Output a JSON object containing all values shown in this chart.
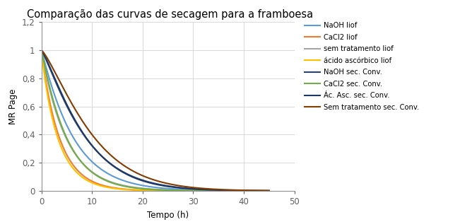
{
  "title": "Comparação das curvas de secagem para a framboesa",
  "xlabel": "Tempo (h)",
  "ylabel": "MR Page",
  "xlim": [
    0,
    50
  ],
  "ylim": [
    0,
    1.2
  ],
  "yticks": [
    0,
    0.2,
    0.4,
    0.6,
    0.8,
    1.0,
    1.2
  ],
  "ytick_labels": [
    "0",
    "0,2",
    "0,4",
    "0,6",
    "0,8",
    "1",
    "1,2"
  ],
  "xticks": [
    0,
    10,
    20,
    30,
    40,
    50
  ],
  "series": [
    {
      "label": "NaOH liof",
      "color": "#5B9BD5",
      "k": 0.14,
      "n": 1.05
    },
    {
      "label": "CaCl2 liof",
      "color": "#ED7D31",
      "k": 0.28,
      "n": 0.98
    },
    {
      "label": "sem tratamento liof",
      "color": "#A5A5A5",
      "k": 0.2,
      "n": 1.0
    },
    {
      "label": "ácido ascórbico liof",
      "color": "#FFC000",
      "k": 0.32,
      "n": 0.95
    },
    {
      "label": "NaOH sec. Conv.",
      "color": "#264478",
      "k": 0.075,
      "n": 1.18
    },
    {
      "label": "CaCl2 sec. Conv.",
      "color": "#70AD47",
      "k": 0.18,
      "n": 1.05
    },
    {
      "label": "Ác. Asc. sec. Conv.",
      "color": "#203864",
      "k": 0.068,
      "n": 1.22
    },
    {
      "label": "Sem tratamento sec. Conv.",
      "color": "#843C00",
      "k": 0.048,
      "n": 1.28
    }
  ],
  "figsize": [
    6.51,
    3.14
  ],
  "dpi": 100,
  "background_color": "#ffffff",
  "grid_color": "#d3d3d3",
  "legend_fontsize": 7.2,
  "axis_fontsize": 8.5,
  "title_fontsize": 10.5,
  "linewidth": 1.5
}
